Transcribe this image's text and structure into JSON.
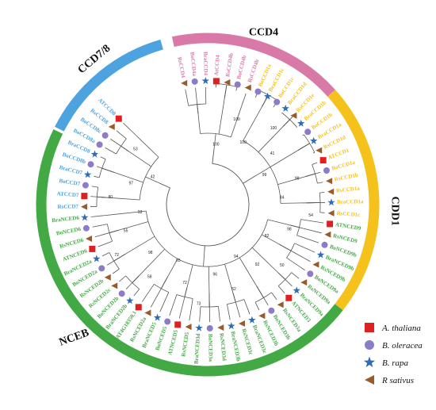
{
  "colors": {
    "CCD4": "#d979a7",
    "CDD1": "#f5c21b",
    "NCEB": "#43a945",
    "CCD7_8": "#4ca3df",
    "ath": "#e02020",
    "bol": "#8c7cc7",
    "bra": "#2e6db6",
    "rsa": "#9b5a2a"
  },
  "subfamilies": [
    {
      "label": "CCD4",
      "color": "CCD4"
    },
    {
      "label": "CDD1",
      "color": "CDD1"
    },
    {
      "label": "NCEB",
      "color": "NCEB"
    },
    {
      "label": "CCD7/8",
      "color": "CCD7_8"
    }
  ],
  "leaves": [
    {
      "label": "RsCCD4",
      "group": "CCD4",
      "marker": "rsa"
    },
    {
      "label": "BoCCD4a",
      "group": "CCD4",
      "marker": "bol"
    },
    {
      "label": "BraCCD4",
      "group": "CCD4",
      "marker": "bra"
    },
    {
      "label": "AtCCD4",
      "group": "CCD4",
      "marker": "ath"
    },
    {
      "label": "RsCCD4b",
      "group": "CCD4",
      "marker": "rsa"
    },
    {
      "label": "BoCCD4b",
      "group": "CCD4",
      "marker": "bol"
    },
    {
      "label": "RsCCD4b",
      "group": "CCD4",
      "marker": "rsa"
    },
    {
      "label": "BoCCD1a",
      "group": "CDD1",
      "marker": "bol"
    },
    {
      "label": "BraCCD1c",
      "group": "CDD1",
      "marker": "bra"
    },
    {
      "label": "BoCCD1c",
      "group": "CDD1",
      "marker": "bol"
    },
    {
      "label": "BraCCD1d",
      "group": "CDD1",
      "marker": "bra"
    },
    {
      "label": "RsCCD1e",
      "group": "CDD1",
      "marker": "rsa"
    },
    {
      "label": "BraCCD1b",
      "group": "CDD1",
      "marker": "bra"
    },
    {
      "label": "BoCCD1b",
      "group": "CDD1",
      "marker": "bol"
    },
    {
      "label": "BraCCD1a",
      "group": "CDD1",
      "marker": "bra"
    },
    {
      "label": "RsCCD1d",
      "group": "CDD1",
      "marker": "rsa"
    },
    {
      "label": "ATCCD1",
      "group": "CDD1",
      "marker": "ath"
    },
    {
      "label": "BoCCD1a",
      "group": "CDD1",
      "marker": "bol"
    },
    {
      "label": "RsCCD1b",
      "group": "CDD1",
      "marker": "rsa"
    },
    {
      "label": "RsCCD1a",
      "group": "CDD1",
      "marker": "rsa"
    },
    {
      "label": "BraCCD1a",
      "group": "CDD1",
      "marker": "bra"
    },
    {
      "label": "RsCCD1c",
      "group": "CDD1",
      "marker": "rsa"
    },
    {
      "label": "ATNCED9",
      "group": "NCEB",
      "marker": "ath"
    },
    {
      "label": "RsNCED9",
      "group": "NCEB",
      "marker": "rsa"
    },
    {
      "label": "BoNCED9b",
      "group": "NCEB",
      "marker": "bol"
    },
    {
      "label": "BraNCED9b",
      "group": "NCEB",
      "marker": "bra"
    },
    {
      "label": "RsNCED9b",
      "group": "NCEB",
      "marker": "rsa"
    },
    {
      "label": "BoNCED9a",
      "group": "NCEB",
      "marker": "bol"
    },
    {
      "label": "RsNCED9a",
      "group": "NCEB",
      "marker": "rsa"
    },
    {
      "label": "BraNCED9a",
      "group": "NCEB",
      "marker": "bra"
    },
    {
      "label": "ATNCED3",
      "group": "NCEB",
      "marker": "ath"
    },
    {
      "label": "RsNCED3a",
      "group": "NCEB",
      "marker": "rsa"
    },
    {
      "label": "BoNCED3b",
      "group": "NCEB",
      "marker": "bol"
    },
    {
      "label": "RsNCED3b",
      "group": "NCEB",
      "marker": "rsa"
    },
    {
      "label": "BraNCED3c",
      "group": "NCEB",
      "marker": "bra"
    },
    {
      "label": "RsNCED3c",
      "group": "NCEB",
      "marker": "rsa"
    },
    {
      "label": "BraNCED3b",
      "group": "NCEB",
      "marker": "bra"
    },
    {
      "label": "RsNCED3d",
      "group": "NCEB",
      "marker": "rsa"
    },
    {
      "label": "BoNCED3a",
      "group": "NCEB",
      "marker": "bol"
    },
    {
      "label": "BraNCED3d",
      "group": "NCEB",
      "marker": "bra"
    },
    {
      "label": "RsNCED5",
      "group": "NCEB",
      "marker": "rsa"
    },
    {
      "label": "ATNCED5",
      "group": "NCEB",
      "marker": "ath"
    },
    {
      "label": "BoNCED5",
      "group": "NCEB",
      "marker": "bol"
    },
    {
      "label": "BraNCED5",
      "group": "NCEB",
      "marker": "bra"
    },
    {
      "label": "RsNCED2a",
      "group": "NCEB",
      "marker": "rsa"
    },
    {
      "label": "AT4G18350.1",
      "group": "NCEB",
      "marker": "ath"
    },
    {
      "label": "BraNCED2b",
      "group": "NCEB",
      "marker": "bra"
    },
    {
      "label": "BoNCED2b",
      "group": "NCEB",
      "marker": "bol"
    },
    {
      "label": "RsNCED2c",
      "group": "NCEB",
      "marker": "rsa"
    },
    {
      "label": "RsNCED2b",
      "group": "NCEB",
      "marker": "rsa"
    },
    {
      "label": "BoNCED2a",
      "group": "NCEB",
      "marker": "bol"
    },
    {
      "label": "BraNCED2a",
      "group": "NCEB",
      "marker": "bra"
    },
    {
      "label": "ATNCED6",
      "group": "NCEB",
      "marker": "ath"
    },
    {
      "label": "RsNCED6",
      "group": "NCEB",
      "marker": "rsa"
    },
    {
      "label": "BoNCED6",
      "group": "NCEB",
      "marker": "bol"
    },
    {
      "label": "BraNCED6",
      "group": "NCEB",
      "marker": "bra"
    },
    {
      "label": "RsCCD7",
      "group": "CCD7_8",
      "marker": "rsa"
    },
    {
      "label": "ATCCD7",
      "group": "CCD7_8",
      "marker": "ath"
    },
    {
      "label": "BoCCD7",
      "group": "CCD7_8",
      "marker": "bol"
    },
    {
      "label": "BraCCD7",
      "group": "CCD7_8",
      "marker": "bra"
    },
    {
      "label": "BoCCD8b",
      "group": "CCD7_8",
      "marker": "bol"
    },
    {
      "label": "BraCCD8",
      "group": "CCD7_8",
      "marker": "bra"
    },
    {
      "label": "BoCCD8a",
      "group": "CCD7_8",
      "marker": "bol"
    },
    {
      "label": "BoCCD8c",
      "group": "CCD7_8",
      "marker": "bol"
    },
    {
      "label": "RsCCD8",
      "group": "CCD7_8",
      "marker": "rsa"
    },
    {
      "label": "ATCCD8",
      "group": "CCD7_8",
      "marker": "ath"
    }
  ],
  "bootstrap": [
    "100",
    "100",
    "100",
    "100",
    "41",
    "99",
    "99",
    "84",
    "54",
    "98",
    "82",
    "50",
    "92",
    "94",
    "52",
    "96",
    "73",
    "72",
    "65",
    "58",
    "98",
    "72",
    "55",
    "93",
    "80",
    "97",
    "42",
    "53"
  ],
  "legend": [
    {
      "label": "A. thaliana",
      "marker": "ath"
    },
    {
      "label": "B. oleracea",
      "marker": "bol"
    },
    {
      "label": "B. rapa",
      "marker": "bra"
    },
    {
      "label": "R sativus",
      "marker": "rsa"
    }
  ]
}
